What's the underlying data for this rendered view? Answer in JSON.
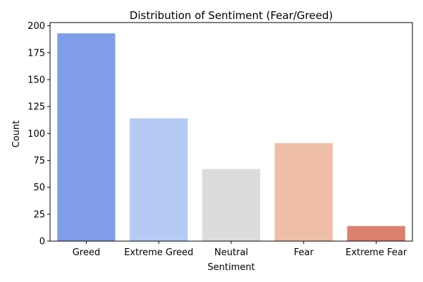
{
  "chart_data": {
    "type": "bar",
    "title": "Distribution of Sentiment (Fear/Greed)",
    "xlabel": "Sentiment",
    "ylabel": "Count",
    "categories": [
      "Greed",
      "Extreme Greed",
      "Neutral",
      "Fear",
      "Extreme Fear"
    ],
    "values": [
      193,
      114,
      67,
      91,
      14
    ],
    "colors": [
      "#7f9de8",
      "#b5cbf5",
      "#dcdcdc",
      "#efbea7",
      "#db806d"
    ],
    "ylim": [
      0,
      203
    ],
    "yticks": [
      0,
      25,
      50,
      75,
      100,
      125,
      150,
      175,
      200
    ],
    "grid": false,
    "legend": "none"
  }
}
